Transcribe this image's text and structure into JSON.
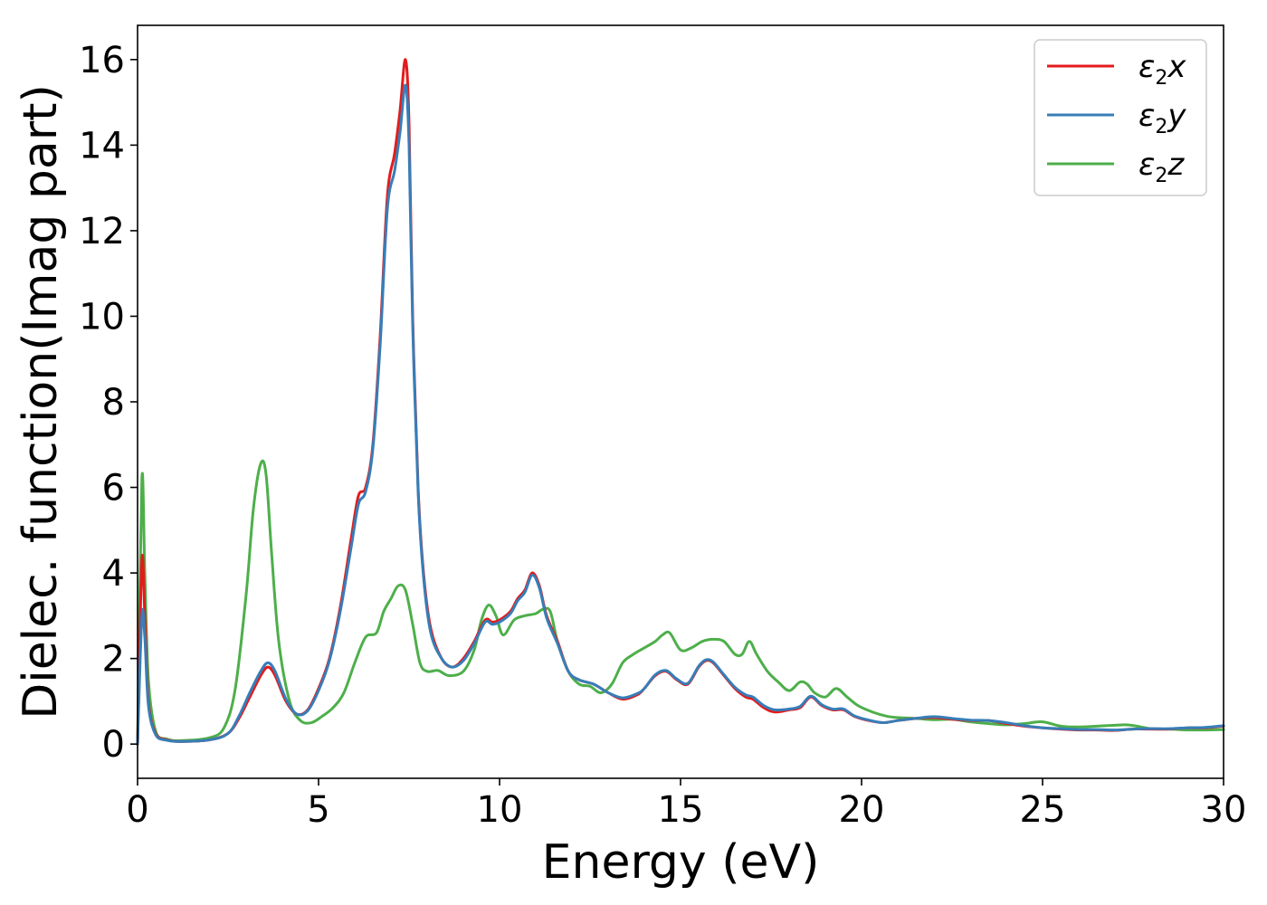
{
  "chart_data": {
    "type": "line",
    "title": "",
    "xlabel": "Energy (eV)",
    "ylabel": "Dielec. function(Imag part)",
    "xlim": [
      0,
      30
    ],
    "ylim": [
      -0.8,
      16.8
    ],
    "xticks": [
      "0",
      "5",
      "10",
      "15",
      "20",
      "25",
      "30"
    ],
    "yticks": [
      "0",
      "2",
      "4",
      "6",
      "8",
      "10",
      "12",
      "14",
      "16"
    ],
    "grid": false,
    "legend_position": "top-right",
    "series": [
      {
        "name": "ε₂x",
        "legend": {
          "symbol": "ε",
          "sub": "2",
          "var": "x"
        },
        "color": "#e41a1c",
        "x": [
          0,
          0.12,
          0.2,
          0.3,
          0.5,
          0.8,
          1.2,
          2.0,
          2.5,
          2.8,
          3.1,
          3.4,
          3.6,
          3.8,
          4.1,
          4.4,
          4.7,
          5.0,
          5.3,
          5.6,
          5.9,
          6.1,
          6.3,
          6.5,
          6.7,
          6.9,
          7.1,
          7.25,
          7.4,
          7.5,
          7.6,
          7.75,
          7.9,
          8.1,
          8.4,
          8.7,
          9.0,
          9.3,
          9.6,
          9.8,
          10.0,
          10.3,
          10.5,
          10.7,
          10.9,
          11.1,
          11.3,
          11.6,
          11.9,
          12.2,
          12.6,
          13.0,
          13.4,
          13.8,
          14.0,
          14.3,
          14.6,
          14.9,
          15.2,
          15.5,
          15.7,
          15.9,
          16.2,
          16.5,
          16.8,
          17.0,
          17.3,
          17.6,
          18.0,
          18.3,
          18.6,
          18.9,
          19.2,
          19.5,
          19.8,
          20.2,
          20.6,
          21.0,
          21.5,
          22.0,
          22.5,
          23.0,
          23.5,
          24.0,
          24.5,
          25.0,
          25.5,
          26.0,
          26.5,
          27.0,
          27.5,
          28.0,
          28.5,
          29.0,
          29.5,
          30.0
        ],
        "y": [
          0,
          4.3,
          3.0,
          1.0,
          0.25,
          0.1,
          0.06,
          0.1,
          0.25,
          0.6,
          1.1,
          1.6,
          1.8,
          1.6,
          1.0,
          0.7,
          0.8,
          1.3,
          2.0,
          3.2,
          4.8,
          5.8,
          6.0,
          7.0,
          9.5,
          12.8,
          13.8,
          14.8,
          16.0,
          14.5,
          10.0,
          6.0,
          4.0,
          2.7,
          2.0,
          1.8,
          2.0,
          2.4,
          2.9,
          2.85,
          2.9,
          3.1,
          3.4,
          3.6,
          4.0,
          3.7,
          3.0,
          2.4,
          1.7,
          1.5,
          1.4,
          1.2,
          1.05,
          1.15,
          1.3,
          1.6,
          1.7,
          1.5,
          1.4,
          1.8,
          1.95,
          1.9,
          1.6,
          1.3,
          1.1,
          1.05,
          0.85,
          0.75,
          0.8,
          0.85,
          1.1,
          0.9,
          0.8,
          0.8,
          0.65,
          0.55,
          0.5,
          0.55,
          0.6,
          0.62,
          0.58,
          0.55,
          0.55,
          0.48,
          0.42,
          0.38,
          0.35,
          0.33,
          0.33,
          0.32,
          0.35,
          0.35,
          0.35,
          0.38,
          0.38,
          0.42
        ]
      },
      {
        "name": "ε₂y",
        "legend": {
          "symbol": "ε",
          "sub": "2",
          "var": "y"
        },
        "color": "#377eb8",
        "x": [
          0,
          0.12,
          0.2,
          0.3,
          0.5,
          0.8,
          1.2,
          2.0,
          2.5,
          2.8,
          3.1,
          3.4,
          3.6,
          3.8,
          4.1,
          4.4,
          4.7,
          5.0,
          5.3,
          5.6,
          5.9,
          6.1,
          6.3,
          6.5,
          6.7,
          6.9,
          7.1,
          7.25,
          7.4,
          7.5,
          7.6,
          7.75,
          7.9,
          8.1,
          8.4,
          8.7,
          9.0,
          9.3,
          9.6,
          9.8,
          10.0,
          10.3,
          10.5,
          10.7,
          10.9,
          11.1,
          11.3,
          11.6,
          11.9,
          12.2,
          12.6,
          13.0,
          13.4,
          13.8,
          14.0,
          14.3,
          14.6,
          14.9,
          15.2,
          15.5,
          15.7,
          15.9,
          16.2,
          16.5,
          16.8,
          17.0,
          17.3,
          17.6,
          18.0,
          18.3,
          18.6,
          18.9,
          19.2,
          19.5,
          19.8,
          20.2,
          20.6,
          21.0,
          21.5,
          22.0,
          22.5,
          23.0,
          23.5,
          24.0,
          24.5,
          25.0,
          25.5,
          26.0,
          26.5,
          27.0,
          27.5,
          28.0,
          28.5,
          29.0,
          29.5,
          30.0
        ],
        "y": [
          0,
          3.0,
          2.5,
          0.9,
          0.22,
          0.09,
          0.06,
          0.1,
          0.25,
          0.65,
          1.2,
          1.7,
          1.9,
          1.7,
          1.05,
          0.7,
          0.78,
          1.25,
          1.95,
          3.1,
          4.6,
          5.6,
          5.9,
          6.9,
          9.3,
          12.5,
          13.4,
          14.3,
          15.4,
          14.0,
          9.8,
          5.9,
          3.9,
          2.6,
          2.0,
          1.8,
          1.95,
          2.35,
          2.85,
          2.8,
          2.85,
          3.05,
          3.35,
          3.55,
          3.95,
          3.65,
          2.95,
          2.35,
          1.7,
          1.5,
          1.4,
          1.2,
          1.08,
          1.18,
          1.3,
          1.62,
          1.72,
          1.52,
          1.42,
          1.82,
          1.97,
          1.92,
          1.62,
          1.33,
          1.15,
          1.1,
          0.9,
          0.8,
          0.82,
          0.88,
          1.12,
          0.92,
          0.82,
          0.82,
          0.66,
          0.56,
          0.5,
          0.55,
          0.6,
          0.64,
          0.6,
          0.56,
          0.55,
          0.5,
          0.43,
          0.38,
          0.36,
          0.34,
          0.34,
          0.33,
          0.35,
          0.36,
          0.36,
          0.38,
          0.39,
          0.43
        ]
      },
      {
        "name": "ε₂z",
        "legend": {
          "symbol": "ε",
          "sub": "2",
          "var": "z"
        },
        "color": "#4daf4a",
        "x": [
          0,
          0.12,
          0.2,
          0.3,
          0.5,
          0.8,
          1.2,
          2.0,
          2.4,
          2.7,
          3.0,
          3.2,
          3.4,
          3.55,
          3.7,
          3.9,
          4.2,
          4.5,
          4.8,
          5.1,
          5.4,
          5.7,
          6.0,
          6.3,
          6.6,
          6.8,
          7.0,
          7.2,
          7.4,
          7.6,
          7.8,
          8.0,
          8.3,
          8.6,
          9.0,
          9.3,
          9.5,
          9.7,
          9.9,
          10.1,
          10.4,
          10.7,
          11.0,
          11.2,
          11.4,
          11.6,
          11.9,
          12.2,
          12.5,
          12.8,
          13.1,
          13.4,
          13.7,
          14.0,
          14.3,
          14.5,
          14.7,
          15.0,
          15.3,
          15.6,
          15.9,
          16.2,
          16.5,
          16.7,
          16.9,
          17.1,
          17.4,
          17.7,
          18.0,
          18.3,
          18.5,
          18.7,
          19.0,
          19.3,
          19.6,
          19.9,
          20.3,
          20.7,
          21.0,
          21.5,
          22.0,
          22.5,
          23.0,
          23.5,
          24.0,
          24.5,
          25.0,
          25.5,
          26.0,
          26.5,
          27.0,
          27.3,
          27.6,
          28.0,
          28.5,
          29.0,
          29.5,
          30.0
        ],
        "y": [
          0,
          6.2,
          4.0,
          1.5,
          0.3,
          0.12,
          0.08,
          0.15,
          0.4,
          1.3,
          3.5,
          5.5,
          6.55,
          6.3,
          4.5,
          2.4,
          1.0,
          0.55,
          0.5,
          0.65,
          0.85,
          1.2,
          1.9,
          2.5,
          2.6,
          3.1,
          3.4,
          3.7,
          3.6,
          2.8,
          1.9,
          1.7,
          1.72,
          1.6,
          1.7,
          2.2,
          2.9,
          3.25,
          3.0,
          2.55,
          2.9,
          3.0,
          3.05,
          3.15,
          3.1,
          2.4,
          1.7,
          1.4,
          1.35,
          1.2,
          1.4,
          1.9,
          2.1,
          2.25,
          2.4,
          2.55,
          2.6,
          2.2,
          2.25,
          2.4,
          2.45,
          2.4,
          2.1,
          2.1,
          2.4,
          2.1,
          1.7,
          1.45,
          1.25,
          1.45,
          1.4,
          1.2,
          1.1,
          1.3,
          1.1,
          0.9,
          0.75,
          0.65,
          0.62,
          0.6,
          0.57,
          0.58,
          0.52,
          0.48,
          0.45,
          0.48,
          0.52,
          0.42,
          0.4,
          0.42,
          0.44,
          0.45,
          0.42,
          0.36,
          0.35,
          0.33,
          0.33,
          0.34
        ]
      }
    ]
  }
}
